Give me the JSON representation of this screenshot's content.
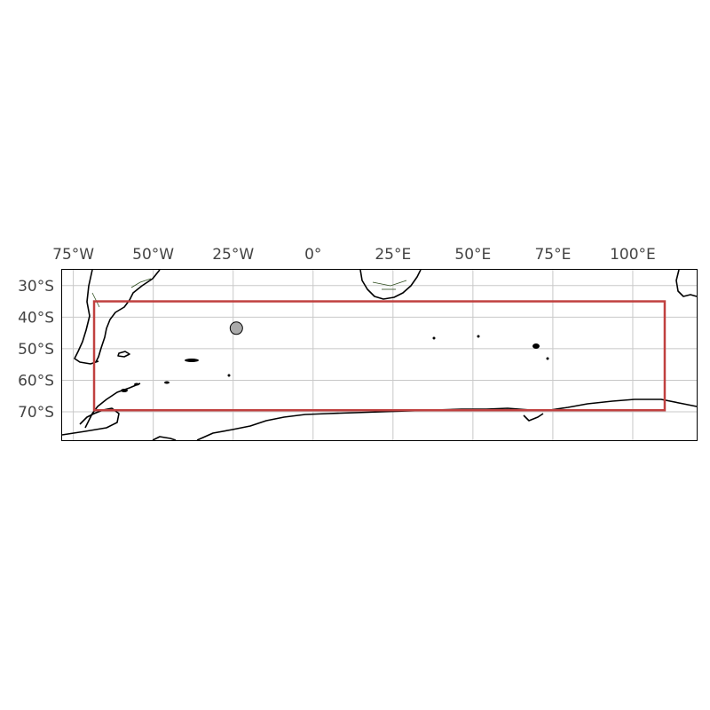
{
  "map": {
    "lon_ticks": [
      {
        "value": -75,
        "label": "75°W"
      },
      {
        "value": -50,
        "label": "50°W"
      },
      {
        "value": -25,
        "label": "25°W"
      },
      {
        "value": 0,
        "label": "0°"
      },
      {
        "value": 25,
        "label": "25°E"
      },
      {
        "value": 50,
        "label": "50°E"
      },
      {
        "value": 75,
        "label": "75°E"
      },
      {
        "value": 100,
        "label": "100°E"
      }
    ],
    "lat_ticks": [
      {
        "value": -30,
        "label": "30°S"
      },
      {
        "value": -40,
        "label": "40°S"
      },
      {
        "value": -50,
        "label": "50°S"
      },
      {
        "value": -60,
        "label": "60°S"
      },
      {
        "value": -70,
        "label": "70°S"
      }
    ],
    "extent": {
      "lon": [
        -78.5,
        120
      ],
      "lat": [
        -79,
        -25
      ]
    },
    "region_box": {
      "lon": [
        -68.5,
        110
      ],
      "lat": [
        -35,
        -69.5
      ],
      "color": "#c0403f"
    },
    "marker": {
      "lon": -24,
      "lat": -43.5,
      "color": "#aaaaaa",
      "edge": "#000000"
    },
    "gridlines": true,
    "coastline_color": "#000000",
    "border_color": "#2a4a1a"
  }
}
